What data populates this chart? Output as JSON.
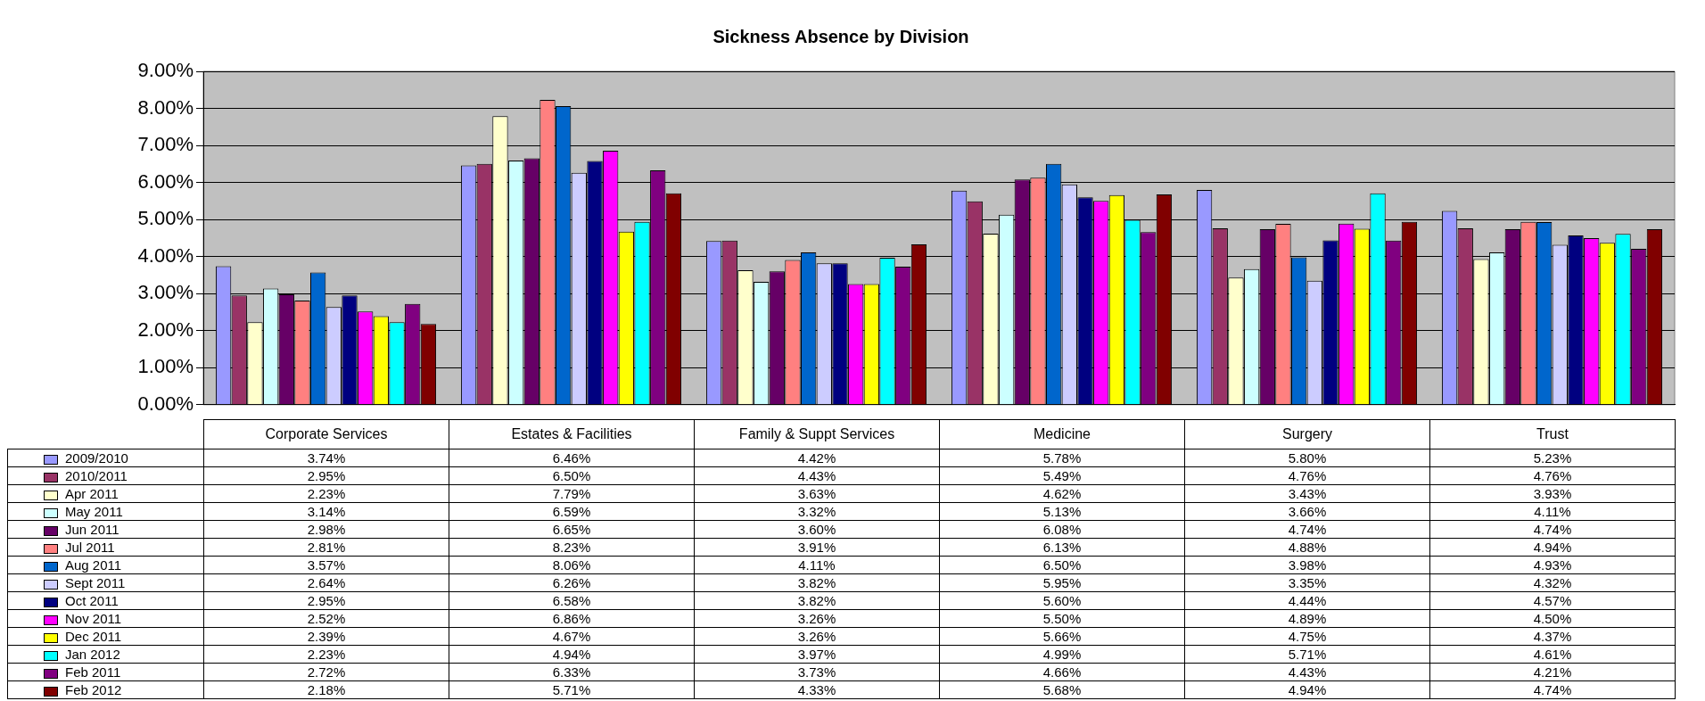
{
  "chart_data": {
    "type": "bar",
    "title": "Sickness Absence by Division",
    "categories": [
      "Corporate Services",
      "Estates & Facilities",
      "Family & Suppt Services",
      "Medicine",
      "Surgery",
      "Trust"
    ],
    "ylim": [
      0,
      9
    ],
    "yticks": [
      {
        "value": 0,
        "label": "0.00%"
      },
      {
        "value": 1,
        "label": "1.00%"
      },
      {
        "value": 2,
        "label": "2.00%"
      },
      {
        "value": 3,
        "label": "3.00%"
      },
      {
        "value": 4,
        "label": "4.00%"
      },
      {
        "value": 5,
        "label": "5.00%"
      },
      {
        "value": 6,
        "label": "6.00%"
      },
      {
        "value": 7,
        "label": "7.00%"
      },
      {
        "value": 8,
        "label": "8.00%"
      },
      {
        "value": 9,
        "label": "9.00%"
      }
    ],
    "grid": "y",
    "legend": "bottom left",
    "series": [
      {
        "name": "2009/2010",
        "color": "#9999ff",
        "values": [
          3.74,
          6.46,
          4.42,
          5.78,
          5.8,
          5.23
        ],
        "value_labels": [
          "3.74%",
          "6.46%",
          "4.42%",
          "5.78%",
          "5.80%",
          "5.23%"
        ]
      },
      {
        "name": "2010/2011",
        "color": "#993366",
        "values": [
          2.95,
          6.5,
          4.43,
          5.49,
          4.76,
          4.76
        ],
        "value_labels": [
          "2.95%",
          "6.50%",
          "4.43%",
          "5.49%",
          "4.76%",
          "4.76%"
        ]
      },
      {
        "name": "Apr 2011",
        "color": "#ffffcc",
        "values": [
          2.23,
          7.79,
          3.63,
          4.62,
          3.43,
          3.93
        ],
        "value_labels": [
          "2.23%",
          "7.79%",
          "3.63%",
          "4.62%",
          "3.43%",
          "3.93%"
        ]
      },
      {
        "name": "May 2011",
        "color": "#ccffff",
        "values": [
          3.14,
          6.59,
          3.32,
          5.13,
          3.66,
          4.11
        ],
        "value_labels": [
          "3.14%",
          "6.59%",
          "3.32%",
          "5.13%",
          "3.66%",
          "4.11%"
        ]
      },
      {
        "name": "Jun 2011",
        "color": "#660066",
        "values": [
          2.98,
          6.65,
          3.6,
          6.08,
          4.74,
          4.74
        ],
        "value_labels": [
          "2.98%",
          "6.65%",
          "3.60%",
          "6.08%",
          "4.74%",
          "4.74%"
        ]
      },
      {
        "name": "Jul 2011",
        "color": "#ff8080",
        "values": [
          2.81,
          8.23,
          3.91,
          6.13,
          4.88,
          4.94
        ],
        "value_labels": [
          "2.81%",
          "8.23%",
          "3.91%",
          "6.13%",
          "4.88%",
          "4.94%"
        ]
      },
      {
        "name": "Aug 2011",
        "color": "#0066cc",
        "values": [
          3.57,
          8.06,
          4.11,
          6.5,
          3.98,
          4.93
        ],
        "value_labels": [
          "3.57%",
          "8.06%",
          "4.11%",
          "6.50%",
          "3.98%",
          "4.93%"
        ]
      },
      {
        "name": "Sept 2011",
        "color": "#ccccff",
        "values": [
          2.64,
          6.26,
          3.82,
          5.95,
          3.35,
          4.32
        ],
        "value_labels": [
          "2.64%",
          "6.26%",
          "3.82%",
          "5.95%",
          "3.35%",
          "4.32%"
        ]
      },
      {
        "name": "Oct 2011",
        "color": "#000080",
        "values": [
          2.95,
          6.58,
          3.82,
          5.6,
          4.44,
          4.57
        ],
        "value_labels": [
          "2.95%",
          "6.58%",
          "3.82%",
          "5.60%",
          "4.44%",
          "4.57%"
        ]
      },
      {
        "name": "Nov 2011",
        "color": "#ff00ff",
        "values": [
          2.52,
          6.86,
          3.26,
          5.5,
          4.89,
          4.5
        ],
        "value_labels": [
          "2.52%",
          "6.86%",
          "3.26%",
          "5.50%",
          "4.89%",
          "4.50%"
        ]
      },
      {
        "name": "Dec 2011",
        "color": "#ffff00",
        "values": [
          2.39,
          4.67,
          3.26,
          5.66,
          4.75,
          4.37
        ],
        "value_labels": [
          "2.39%",
          "4.67%",
          "3.26%",
          "5.66%",
          "4.75%",
          "4.37%"
        ]
      },
      {
        "name": "Jan 2012",
        "color": "#00ffff",
        "values": [
          2.23,
          4.94,
          3.97,
          4.99,
          5.71,
          4.61
        ],
        "value_labels": [
          "2.23%",
          "4.94%",
          "3.97%",
          "4.99%",
          "5.71%",
          "4.61%"
        ]
      },
      {
        "name": "Feb 2011",
        "color": "#800080",
        "values": [
          2.72,
          6.33,
          3.73,
          4.66,
          4.43,
          4.21
        ],
        "value_labels": [
          "2.72%",
          "6.33%",
          "3.73%",
          "4.66%",
          "4.43%",
          "4.21%"
        ]
      },
      {
        "name": "Feb 2012",
        "color": "#800000",
        "values": [
          2.18,
          5.71,
          4.33,
          5.68,
          4.94,
          4.74
        ],
        "value_labels": [
          "2.18%",
          "5.71%",
          "4.33%",
          "5.68%",
          "4.94%",
          "4.74%"
        ]
      }
    ]
  }
}
